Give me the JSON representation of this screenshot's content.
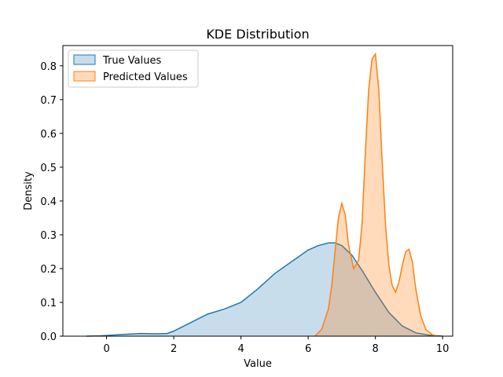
{
  "chart_data": {
    "type": "area",
    "title": "KDE Distribution",
    "xlabel": "Value",
    "ylabel": "Density",
    "xlim": [
      -1.3,
      10.3
    ],
    "ylim": [
      0,
      0.86
    ],
    "x_ticks": [
      0,
      2,
      4,
      6,
      8,
      10
    ],
    "y_ticks": [
      0.0,
      0.1,
      0.2,
      0.3,
      0.4,
      0.5,
      0.6,
      0.7,
      0.8
    ],
    "grid": false,
    "legend_position": "top-left",
    "series": [
      {
        "name": "True Values",
        "color": "#1f77b4",
        "fill_color": "#1f77b4",
        "fill_alpha": 0.25,
        "x": [
          -0.6,
          -0.2,
          0,
          0.5,
          1.0,
          1.5,
          1.8,
          2.0,
          2.5,
          3.0,
          3.5,
          4.0,
          4.5,
          5.0,
          5.5,
          6.0,
          6.3,
          6.6,
          6.8,
          7.0,
          7.3,
          7.6,
          8.0,
          8.4,
          8.8,
          9.2,
          9.6,
          10.0
        ],
        "y": [
          0.0,
          0.001,
          0.002,
          0.005,
          0.008,
          0.007,
          0.008,
          0.015,
          0.04,
          0.065,
          0.08,
          0.1,
          0.14,
          0.185,
          0.22,
          0.255,
          0.268,
          0.276,
          0.276,
          0.268,
          0.24,
          0.195,
          0.13,
          0.07,
          0.03,
          0.01,
          0.003,
          0.0
        ]
      },
      {
        "name": "Predicted Values",
        "color": "#ff7f0e",
        "fill_color": "#ff7f0e",
        "fill_alpha": 0.28,
        "x": [
          6.2,
          6.4,
          6.6,
          6.7,
          6.8,
          6.9,
          7.0,
          7.1,
          7.2,
          7.35,
          7.5,
          7.6,
          7.7,
          7.8,
          7.9,
          8.0,
          8.1,
          8.2,
          8.3,
          8.4,
          8.5,
          8.6,
          8.7,
          8.8,
          8.9,
          9.0,
          9.1,
          9.2,
          9.35,
          9.5,
          9.7,
          9.85
        ],
        "y": [
          0.0,
          0.02,
          0.08,
          0.15,
          0.25,
          0.35,
          0.393,
          0.36,
          0.27,
          0.2,
          0.225,
          0.33,
          0.54,
          0.73,
          0.82,
          0.835,
          0.73,
          0.52,
          0.33,
          0.21,
          0.15,
          0.13,
          0.16,
          0.21,
          0.25,
          0.257,
          0.22,
          0.14,
          0.06,
          0.02,
          0.004,
          0.0
        ]
      }
    ]
  }
}
